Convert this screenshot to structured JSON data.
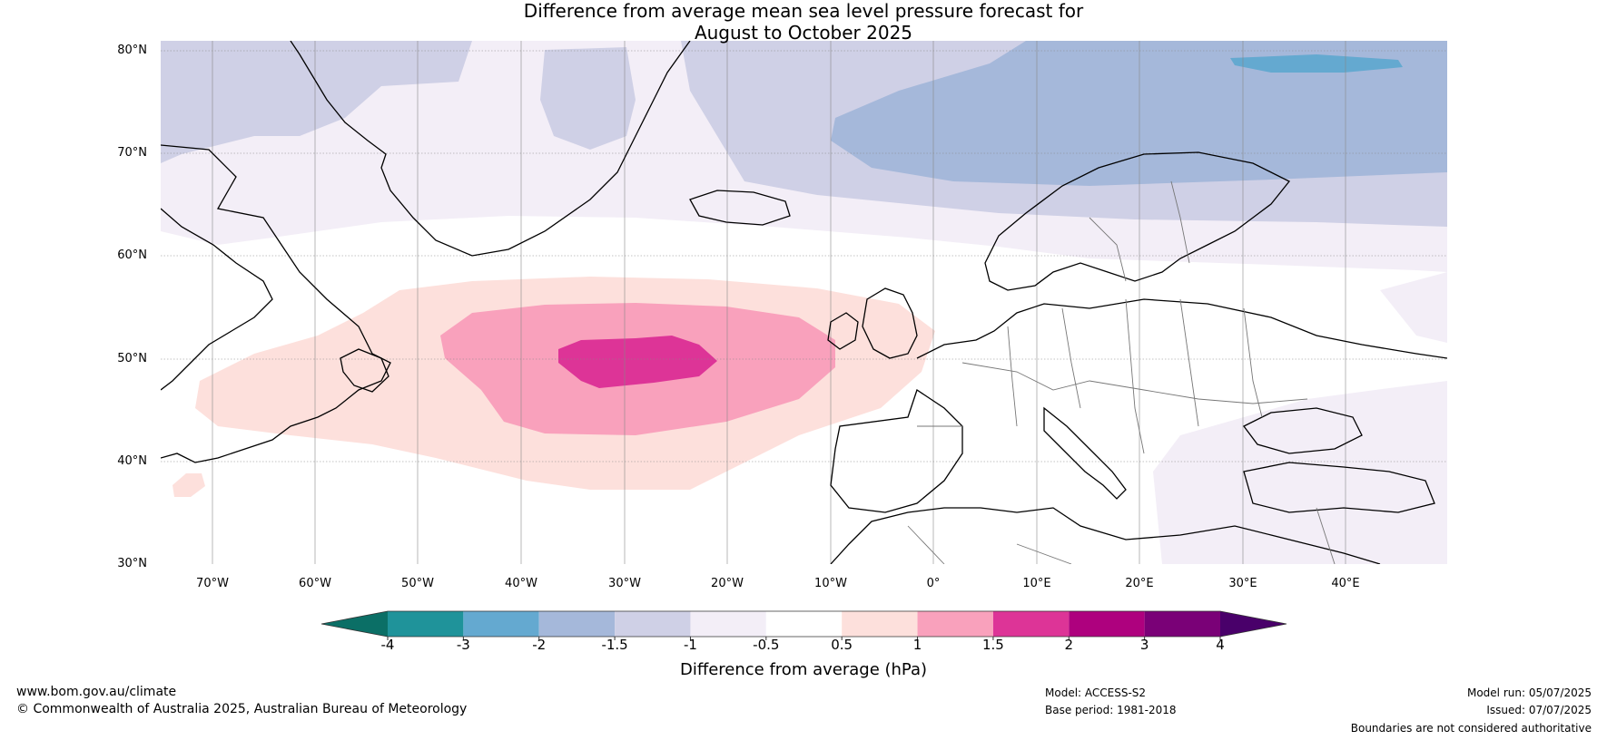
{
  "title_line1": "Difference from average mean sea level pressure forecast for",
  "title_line2": "August to October 2025",
  "lat_labels": [
    "80°N",
    "70°N",
    "60°N",
    "50°N",
    "40°N",
    "30°N"
  ],
  "lon_labels": [
    "70°W",
    "60°W",
    "50°W",
    "40°W",
    "30°W",
    "20°W",
    "10°W",
    "0°",
    "10°E",
    "20°E",
    "30°E",
    "40°E"
  ],
  "colorbar": {
    "title": "Difference from average (hPa)",
    "tick_labels": [
      "-4",
      "-3",
      "-2",
      "-1.5",
      "-1",
      "-0.5",
      "0.5",
      "1",
      "1.5",
      "2",
      "3",
      "4"
    ],
    "colors": [
      "#0b6f66",
      "#1f939a",
      "#64a9d0",
      "#a5b8da",
      "#cfd0e6",
      "#f3eef7",
      "#ffffff",
      "#fde0dc",
      "#f9a1bc",
      "#dd3497",
      "#ae017e",
      "#7a0177",
      "#49006a"
    ]
  },
  "footer": {
    "website": "www.bom.gov.au/climate",
    "copyright": "© Commonwealth of Australia 2025, Australian Bureau of Meteorology",
    "model": "Model: ACCESS-S2",
    "base_period": "Base period: 1981-2018",
    "model_run": "Model run: 05/07/2025",
    "issued": "Issued: 07/07/2025",
    "disclaimer": "Boundaries are not considered authoritative"
  }
}
